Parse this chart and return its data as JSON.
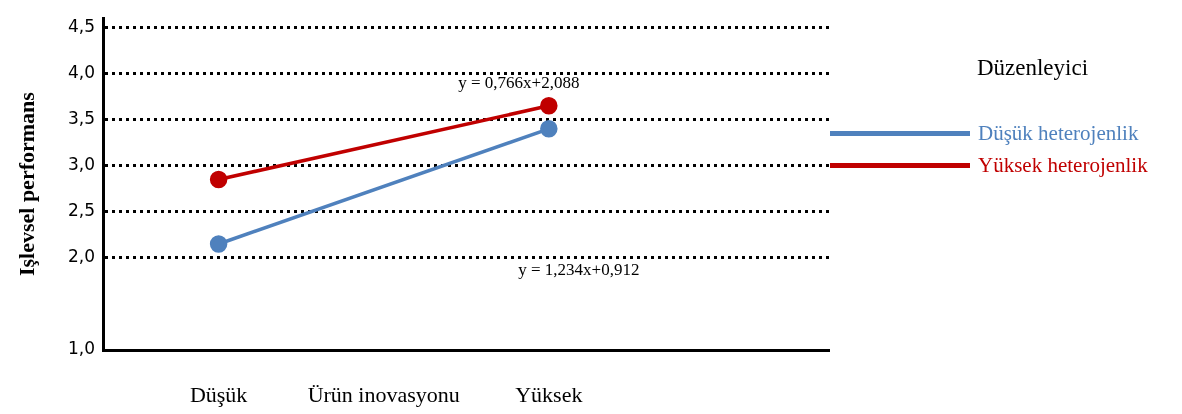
{
  "chart_data": {
    "type": "line",
    "xlabel": "Ürün inovasyonu",
    "ylabel": "Işlevsel performans",
    "legend_title": "Düzenleyici",
    "categories": [
      "Düşük",
      "Yüksek"
    ],
    "series": [
      {
        "name": "Düşük heterojenlik",
        "color": "#4f81bd",
        "values": [
          2.15,
          3.4
        ]
      },
      {
        "name": "Yüksek heterojenlik",
        "color": "#c00000",
        "values": [
          2.85,
          3.65
        ]
      }
    ],
    "ylim": [
      1,
      4.6
    ],
    "yticks": [
      {
        "value": 1,
        "label": "1,0"
      },
      {
        "value": 2,
        "label": "2,0"
      },
      {
        "value": 2.5,
        "label": "2,5"
      },
      {
        "value": 3,
        "label": "3,0"
      },
      {
        "value": 3.5,
        "label": "3,5"
      },
      {
        "value": 4,
        "label": "4,0"
      },
      {
        "value": 4.5,
        "label": "4,5"
      }
    ],
    "annotations": [
      "y = 0,766x+2,088",
      "y = 1,234x+0,912"
    ],
    "grid": "y",
    "legend": "right",
    "marker": "circle",
    "line_style": "solid"
  }
}
